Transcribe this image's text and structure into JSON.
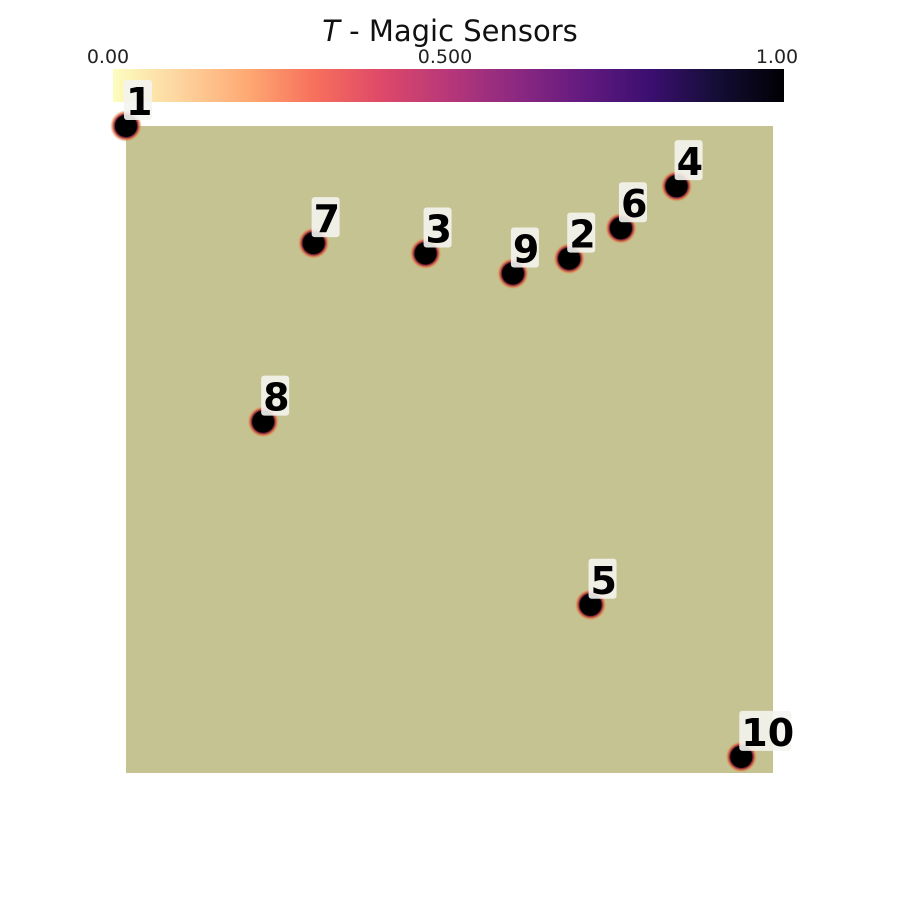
{
  "chart_data": {
    "type": "scatter",
    "title_var": "T",
    "title_rest": " - Magic Sensors",
    "colorbar": {
      "colormap": "magma_r",
      "range": [
        0,
        1
      ],
      "ticks": [
        "0.00",
        "0.500",
        "1.00"
      ]
    },
    "domain_color": "#c5c392",
    "xlim": [
      0,
      1
    ],
    "ylim": [
      0,
      1
    ],
    "points": [
      {
        "label": "1",
        "x": 0.0,
        "y": 1.0
      },
      {
        "label": "2",
        "x": 0.685,
        "y": 0.795
      },
      {
        "label": "3",
        "x": 0.463,
        "y": 0.803
      },
      {
        "label": "4",
        "x": 0.851,
        "y": 0.907
      },
      {
        "label": "5",
        "x": 0.718,
        "y": 0.26
      },
      {
        "label": "6",
        "x": 0.765,
        "y": 0.842
      },
      {
        "label": "7",
        "x": 0.29,
        "y": 0.819
      },
      {
        "label": "8",
        "x": 0.212,
        "y": 0.543
      },
      {
        "label": "9",
        "x": 0.598,
        "y": 0.772
      },
      {
        "label": "10",
        "x": 0.951,
        "y": 0.025
      }
    ]
  }
}
